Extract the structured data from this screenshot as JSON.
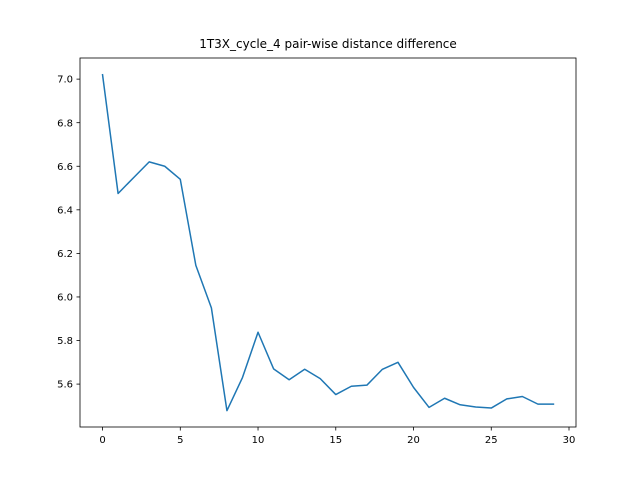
{
  "chart_data": {
    "type": "line",
    "title": "1T3X_cycle_4 pair-wise distance difference",
    "xlabel": "",
    "ylabel": "",
    "xlim": [
      -1.45,
      30.45
    ],
    "ylim": [
      5.403,
      7.097
    ],
    "xticks": [
      0,
      5,
      10,
      15,
      20,
      25,
      30
    ],
    "yticks": [
      5.6,
      5.8,
      6.0,
      6.2,
      6.4,
      6.6,
      6.8,
      7.0
    ],
    "xtick_labels": [
      "0",
      "5",
      "10",
      "15",
      "20",
      "25",
      "30"
    ],
    "ytick_labels": [
      "5.6",
      "5.8",
      "6.0",
      "6.2",
      "6.4",
      "6.6",
      "6.8",
      "7.0"
    ],
    "grid": false,
    "legend": "none",
    "series": [
      {
        "color": "#1f77b4",
        "x": [
          0,
          1,
          2,
          3,
          4,
          5,
          6,
          7,
          8,
          9,
          10,
          11,
          12,
          13,
          14,
          15,
          16,
          17,
          18,
          19,
          20,
          21,
          22,
          23,
          24,
          25,
          26,
          27,
          28,
          29
        ],
        "y": [
          7.02,
          6.475,
          6.548,
          6.62,
          6.6,
          6.54,
          6.145,
          5.95,
          5.478,
          5.63,
          5.838,
          5.67,
          5.62,
          5.668,
          5.625,
          5.552,
          5.59,
          5.595,
          5.668,
          5.7,
          5.585,
          5.493,
          5.535,
          5.505,
          5.495,
          5.49,
          5.532,
          5.543,
          5.508,
          5.508
        ]
      }
    ]
  }
}
